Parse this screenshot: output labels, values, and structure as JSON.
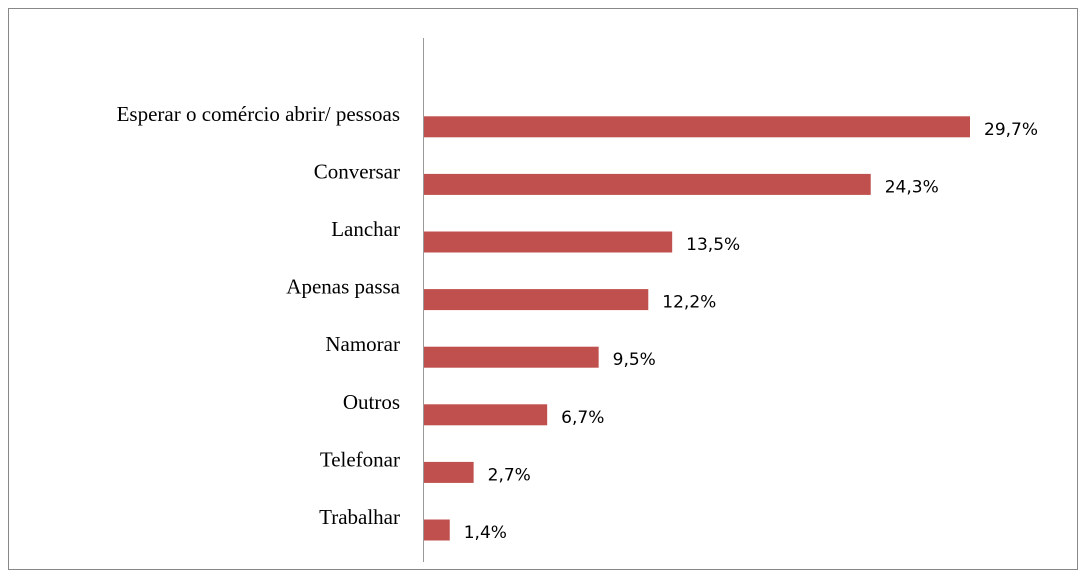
{
  "chart_data": {
    "type": "bar",
    "orientation": "horizontal",
    "categories": [
      "Esperar o comércio abrir/ pessoas",
      "Conversar",
      "Lanchar",
      "Apenas passa",
      "Namorar",
      "Outros",
      "Telefonar",
      "Trabalhar"
    ],
    "values": [
      29.7,
      24.3,
      13.5,
      12.2,
      9.5,
      6.7,
      2.7,
      1.4
    ],
    "value_labels": [
      "29,7%",
      "24,3%",
      "13,5%",
      "12,2%",
      "9,5%",
      "6,7%",
      "2,7%",
      "1,4%"
    ],
    "color": "#c0504d"
  }
}
